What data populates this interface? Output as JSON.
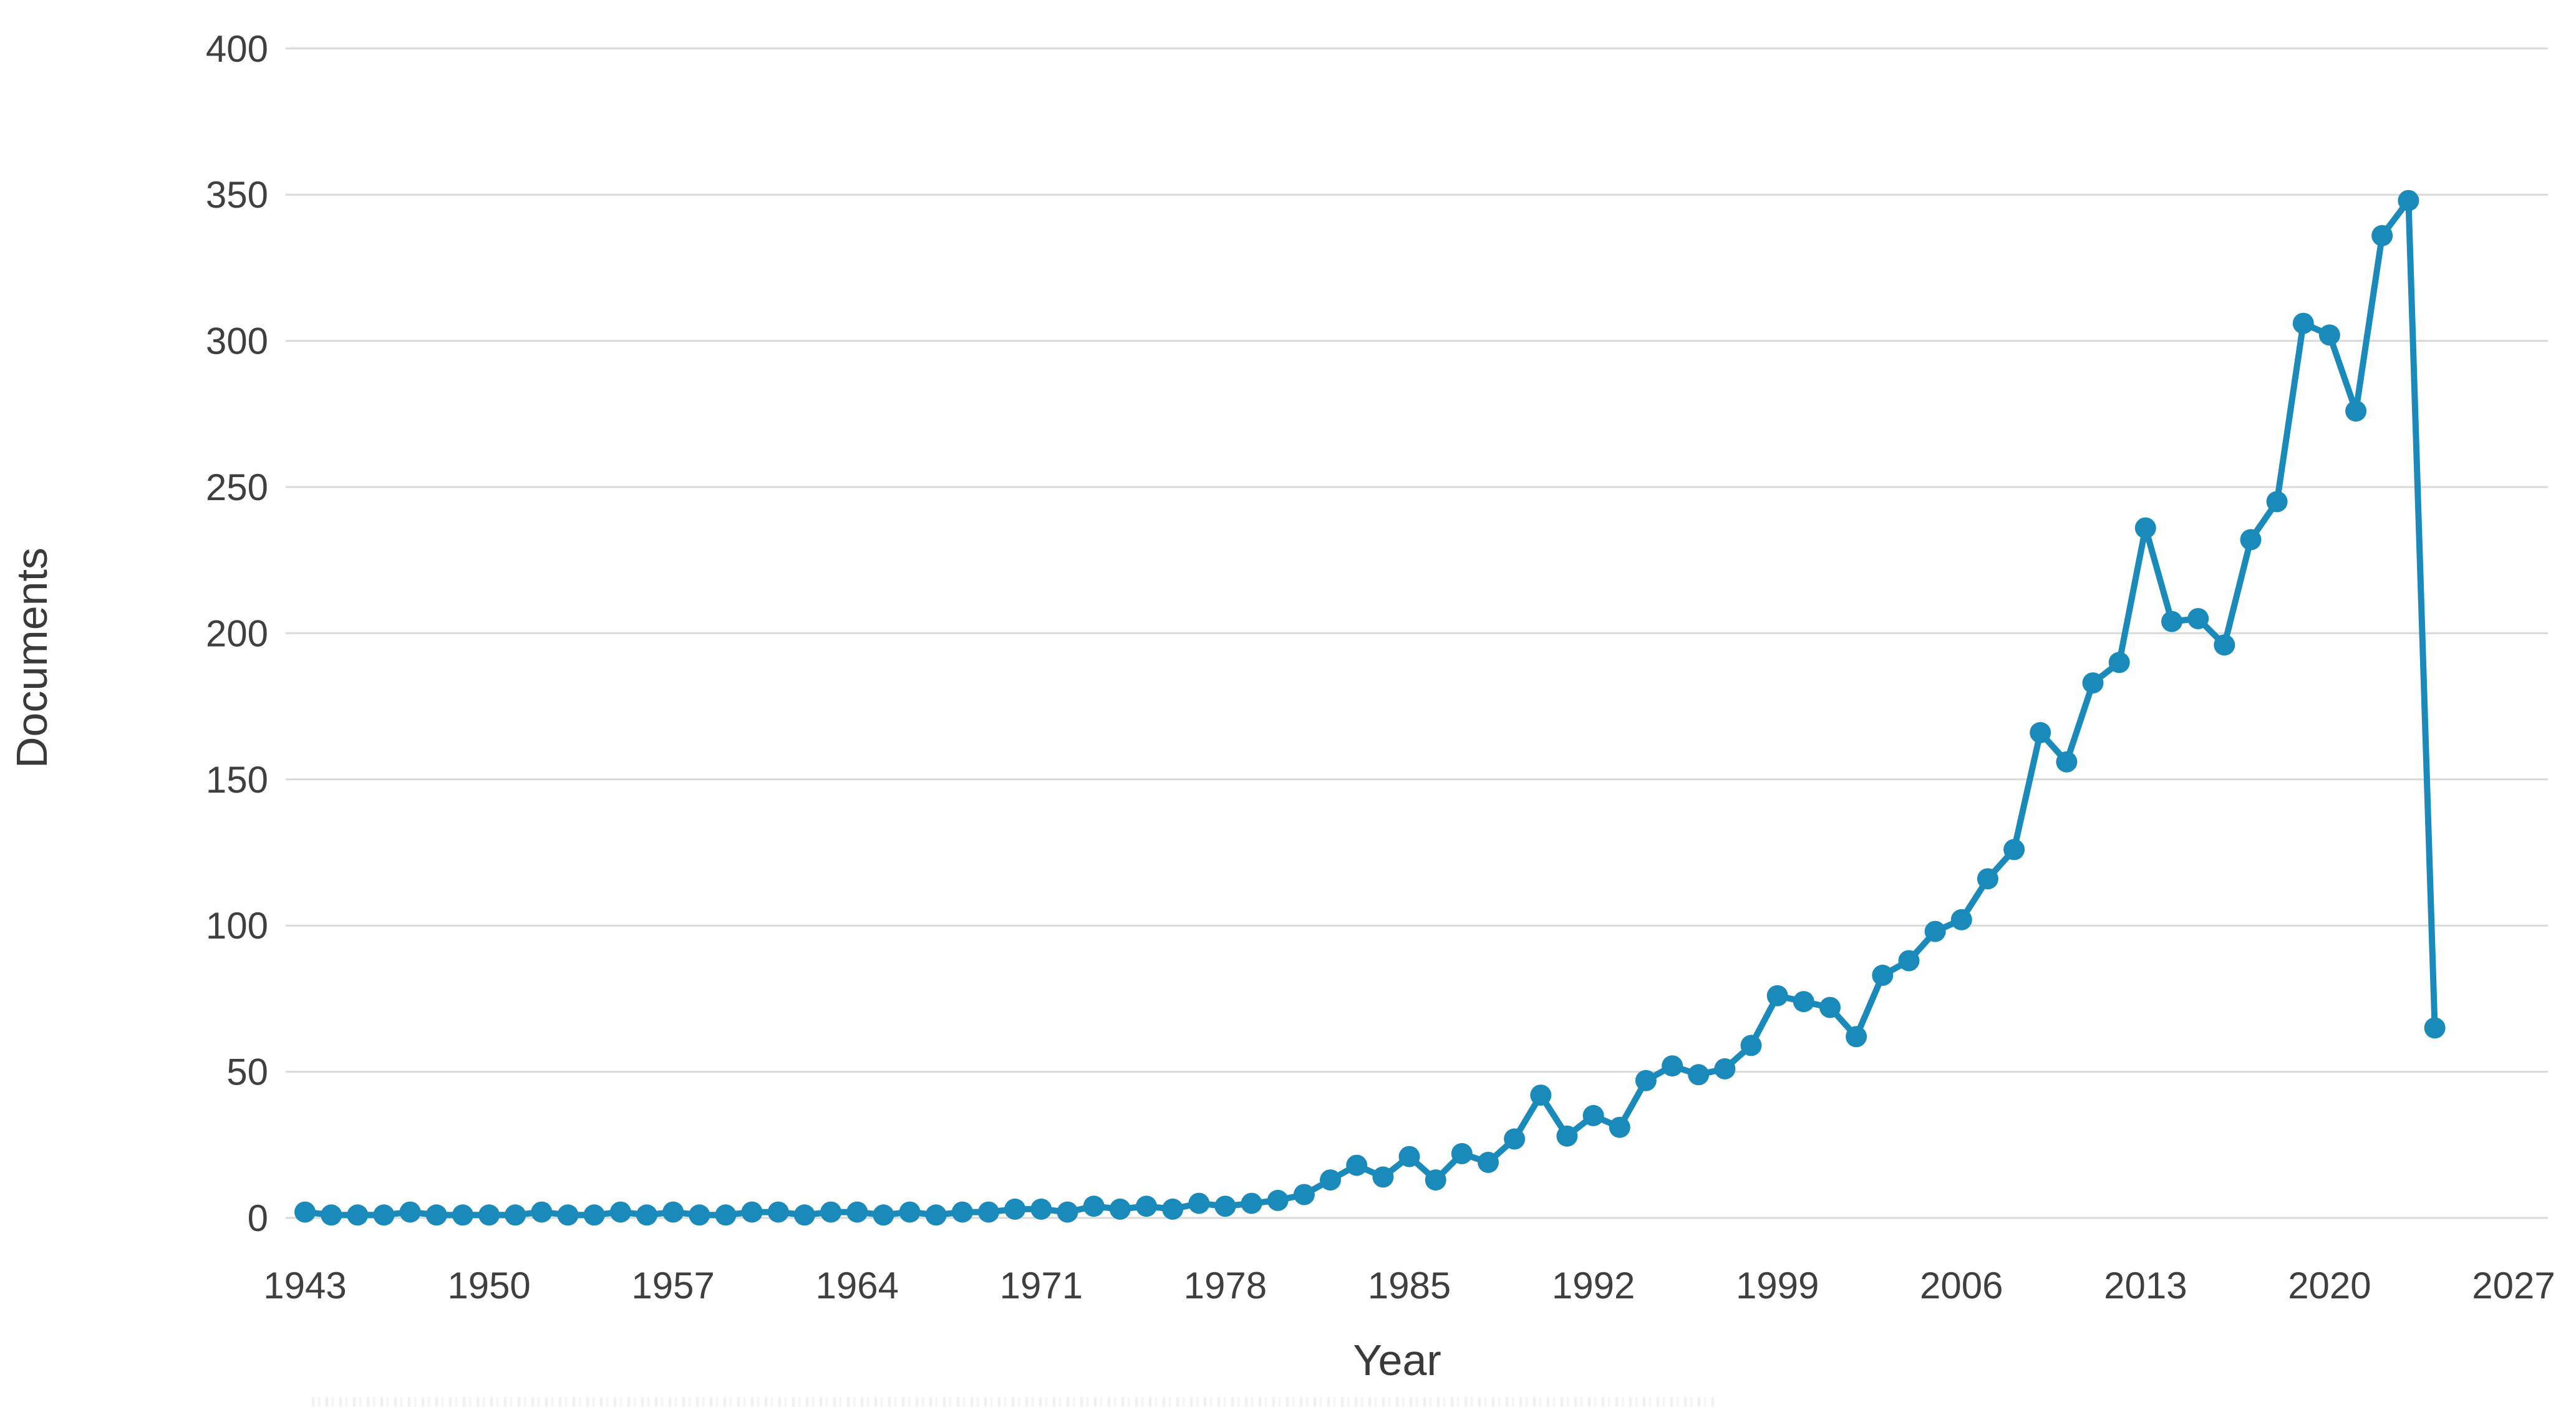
{
  "chart_data": {
    "type": "line",
    "title": "",
    "xlabel": "Year",
    "ylabel": "Documents",
    "xlim": [
      1943,
      2027
    ],
    "ylim": [
      0,
      400
    ],
    "grid": "horizontal-only",
    "legend": "none",
    "x_tick_labels": [
      "1943",
      "1950",
      "1957",
      "1964",
      "1971",
      "1978",
      "1985",
      "1992",
      "1999",
      "2006",
      "2013",
      "2020",
      "2027"
    ],
    "x_tick_years": [
      1943,
      1950,
      1957,
      1964,
      1971,
      1978,
      1985,
      1992,
      1999,
      2006,
      2013,
      2020,
      2027
    ],
    "y_tick_labels": [
      "0",
      "50",
      "100",
      "150",
      "200",
      "250",
      "300",
      "350",
      "400"
    ],
    "y_tick_values": [
      0,
      50,
      100,
      150,
      200,
      250,
      300,
      350,
      400
    ],
    "series": [
      {
        "name": "Documents",
        "color": "#1a8aba",
        "x": [
          1943,
          1944,
          1945,
          1946,
          1947,
          1948,
          1949,
          1950,
          1951,
          1952,
          1953,
          1954,
          1955,
          1956,
          1957,
          1958,
          1959,
          1960,
          1961,
          1962,
          1963,
          1964,
          1965,
          1966,
          1967,
          1968,
          1969,
          1970,
          1971,
          1972,
          1973,
          1974,
          1975,
          1976,
          1977,
          1978,
          1979,
          1980,
          1981,
          1982,
          1983,
          1984,
          1985,
          1986,
          1987,
          1988,
          1989,
          1990,
          1991,
          1992,
          1993,
          1994,
          1995,
          1996,
          1997,
          1998,
          1999,
          2000,
          2001,
          2002,
          2003,
          2004,
          2005,
          2006,
          2007,
          2008,
          2009,
          2010,
          2011,
          2012,
          2013,
          2014,
          2015,
          2016,
          2017,
          2018,
          2019,
          2020,
          2021,
          2022,
          2023,
          2024
        ],
        "values": [
          2,
          1,
          1,
          1,
          2,
          1,
          1,
          1,
          1,
          2,
          1,
          1,
          2,
          1,
          2,
          1,
          1,
          2,
          2,
          1,
          2,
          2,
          1,
          2,
          1,
          2,
          2,
          3,
          3,
          2,
          4,
          3,
          4,
          3,
          5,
          4,
          5,
          6,
          8,
          13,
          18,
          14,
          21,
          13,
          22,
          19,
          27,
          42,
          28,
          35,
          31,
          47,
          52,
          49,
          51,
          59,
          76,
          74,
          72,
          62,
          83,
          88,
          98,
          102,
          116,
          126,
          166,
          156,
          183,
          190,
          236,
          204,
          205,
          196,
          232,
          245,
          306,
          302,
          276,
          336,
          348,
          65
        ]
      }
    ]
  },
  "colors": {
    "line": "#1a8aba",
    "marker": "#1a8aba",
    "gridline": "#d9d9d9",
    "tick_text": "#3f3f3f",
    "axis_title_text": "#3a3a3a",
    "background": "#ffffff"
  }
}
